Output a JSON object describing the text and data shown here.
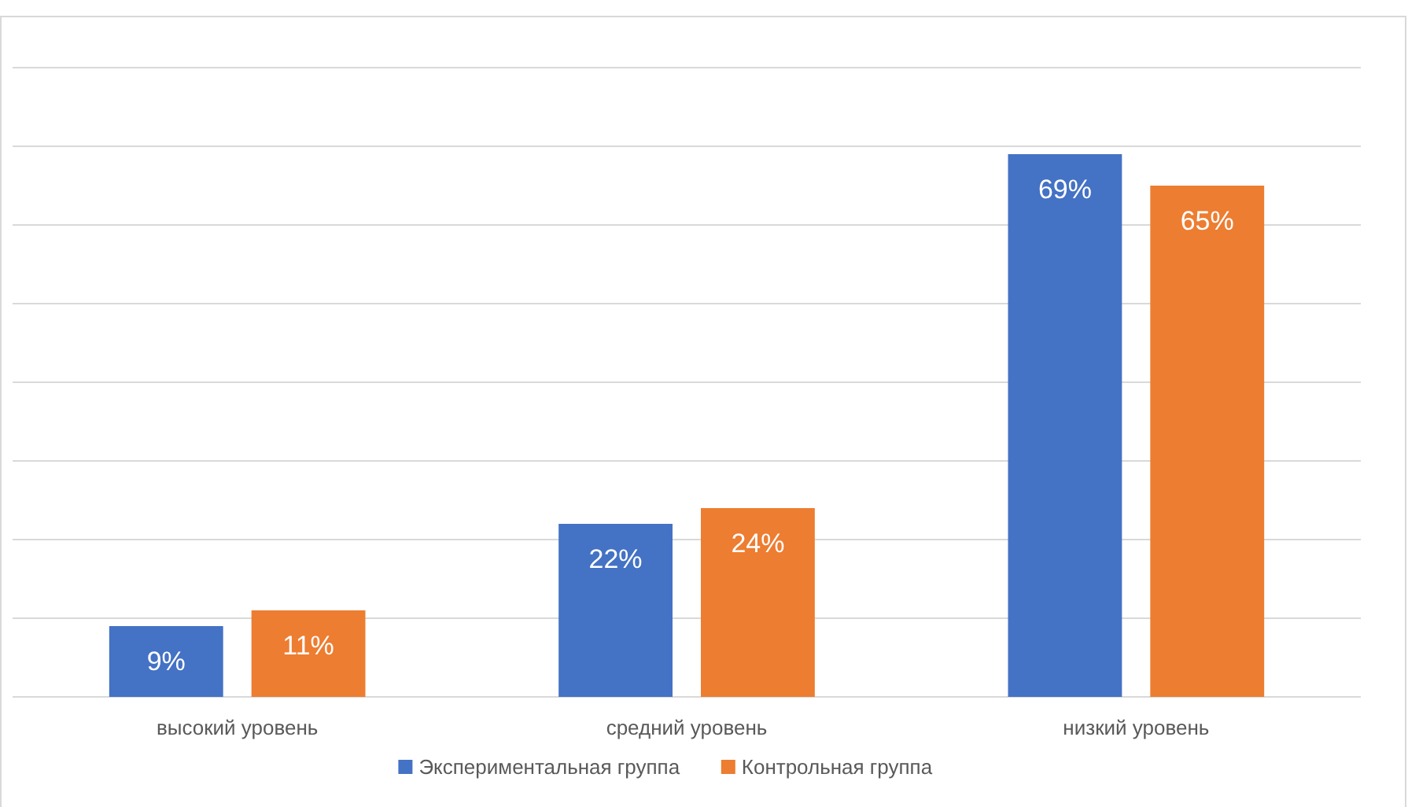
{
  "chart_data": {
    "type": "bar",
    "categories": [
      "высокий уровень",
      "средний уровень",
      "низкий уровень"
    ],
    "series": [
      {
        "name": "Экспериментальная группа",
        "color": "#4472c4",
        "values": [
          9,
          22,
          69
        ],
        "value_labels": [
          "9%",
          "22%",
          "69%"
        ]
      },
      {
        "name": "Контрольная группа",
        "color": "#ed7d31",
        "values": [
          11,
          24,
          65
        ],
        "value_labels": [
          "11%",
          "24%",
          "65%"
        ]
      }
    ],
    "ylim": [
      0,
      80
    ],
    "yticks": [
      {
        "value": 0,
        "label": null
      },
      {
        "value": 10,
        "label": null
      },
      {
        "value": 20,
        "label": null
      },
      {
        "value": 30,
        "label": null
      },
      {
        "value": 40,
        "label": null
      },
      {
        "value": 50,
        "label": null
      },
      {
        "value": 60,
        "label": null
      },
      {
        "value": 70,
        "label": null
      },
      {
        "value": 80,
        "label": null
      }
    ],
    "tick_labels": "x",
    "grid": "y",
    "legend": "bottom"
  }
}
